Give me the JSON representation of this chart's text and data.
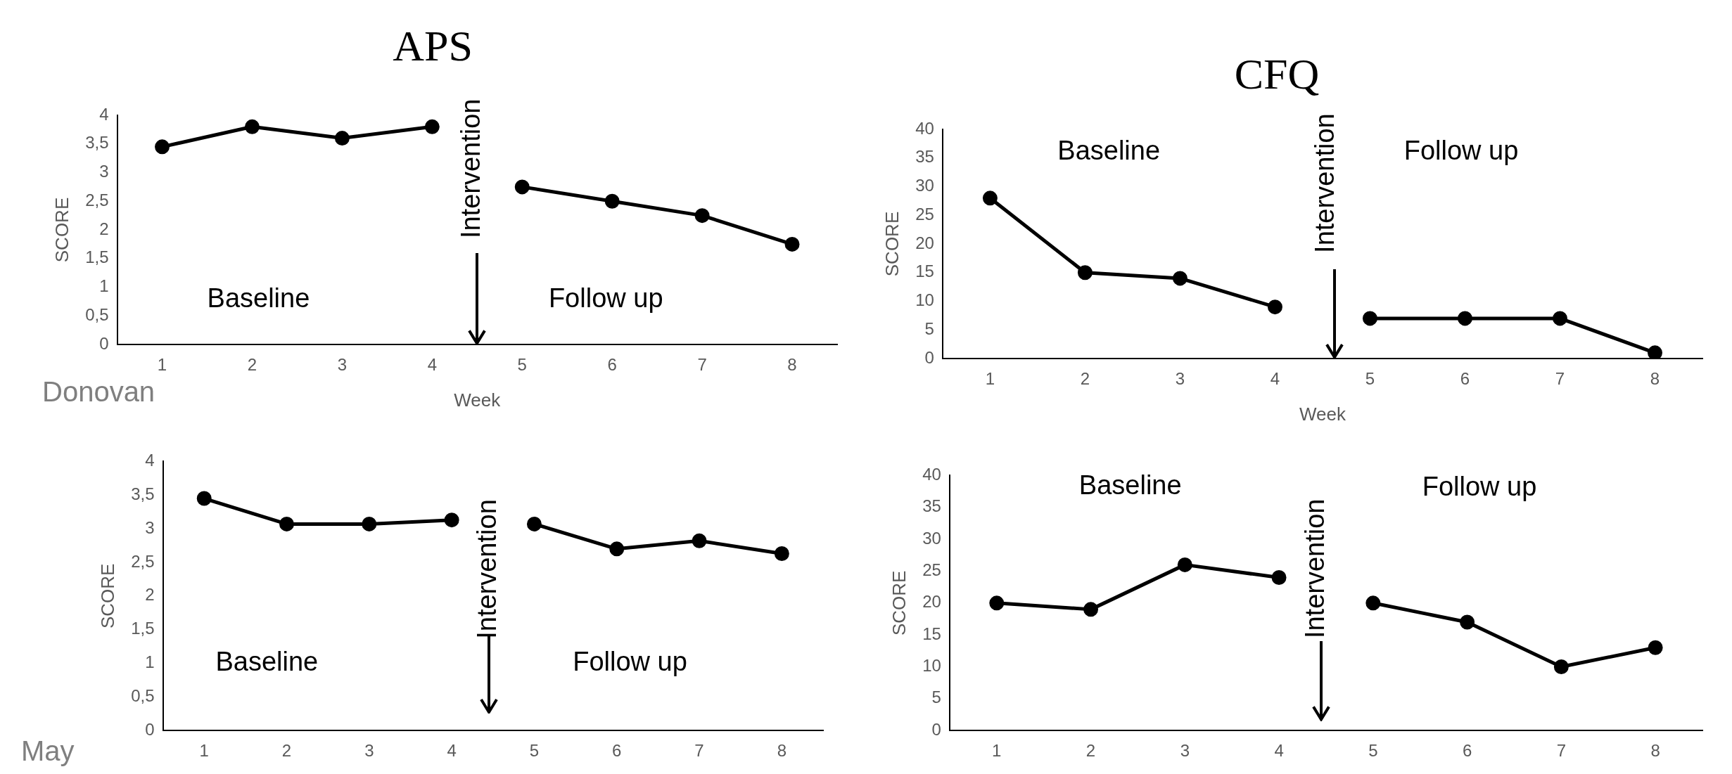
{
  "chart_data": [
    {
      "type": "line",
      "title": "APS",
      "xlabel": "Week",
      "ylabel": "SCORE",
      "categories": [
        "1",
        "2",
        "3",
        "4",
        "5",
        "6",
        "7",
        "8"
      ],
      "series": [
        {
          "color": "#000000",
          "values": [
            3.45,
            3.8,
            3.6,
            3.8,
            null,
            null,
            null,
            null
          ]
        },
        {
          "color": "#000000",
          "values": [
            null,
            null,
            null,
            null,
            2.75,
            2.5,
            2.25,
            1.75
          ]
        }
      ],
      "ylim": [
        0,
        4
      ],
      "yticks": [
        0,
        {
          "value": 0.5,
          "label": "0,5"
        },
        1,
        {
          "value": 1.5,
          "label": "1,5"
        },
        2,
        {
          "value": 2.5,
          "label": "2,5"
        },
        3,
        {
          "value": 3.5,
          "label": "3,5"
        },
        4
      ],
      "grid": false,
      "legend": false,
      "marker": "circle",
      "line_style": "solid",
      "annotations": [
        "Baseline",
        "Follow up",
        "Intervention",
        "Donovan"
      ]
    },
    {
      "type": "line",
      "title": "CFQ",
      "xlabel": "Week",
      "ylabel": "SCORE",
      "categories": [
        "1",
        "2",
        "3",
        "4",
        "5",
        "6",
        "7",
        "8"
      ],
      "series": [
        {
          "color": "#000000",
          "values": [
            28,
            15,
            14,
            9,
            null,
            null,
            null,
            null
          ]
        },
        {
          "color": "#000000",
          "values": [
            null,
            null,
            null,
            null,
            7,
            7,
            7,
            1
          ]
        }
      ],
      "ylim": [
        0,
        40
      ],
      "yticks": [
        0,
        5,
        10,
        15,
        20,
        25,
        30,
        35,
        40
      ],
      "grid": false,
      "legend": false,
      "marker": "circle",
      "line_style": "solid",
      "annotations": [
        "Baseline",
        "Follow up",
        "Intervention"
      ]
    },
    {
      "type": "line",
      "ylabel": "SCORE",
      "categories": [
        "1",
        "2",
        "3",
        "4",
        "5",
        "6",
        "7",
        "8"
      ],
      "series": [
        {
          "color": "#000000",
          "values": [
            3.45,
            3.07,
            3.07,
            3.13,
            null,
            null,
            null,
            null
          ]
        },
        {
          "color": "#000000",
          "values": [
            null,
            null,
            null,
            null,
            3.07,
            2.7,
            2.82,
            2.63
          ]
        }
      ],
      "ylim": [
        0,
        4
      ],
      "yticks": [
        0,
        {
          "value": 0.5,
          "label": "0,5"
        },
        1,
        {
          "value": 1.5,
          "label": "1,5"
        },
        2,
        {
          "value": 2.5,
          "label": "2,5"
        },
        3,
        {
          "value": 3.5,
          "label": "3,5"
        },
        4
      ],
      "grid": false,
      "legend": false,
      "marker": "circle",
      "line_style": "solid",
      "annotations": [
        "Baseline",
        "Follow up",
        "Intervention",
        "May"
      ]
    },
    {
      "type": "line",
      "ylabel": "SCORE",
      "categories": [
        "1",
        "2",
        "3",
        "4",
        "5",
        "6",
        "7",
        "8"
      ],
      "series": [
        {
          "color": "#000000",
          "values": [
            20,
            19,
            26,
            24,
            null,
            null,
            null,
            null
          ]
        },
        {
          "color": "#000000",
          "values": [
            null,
            null,
            null,
            null,
            20,
            17,
            10,
            13
          ]
        }
      ],
      "ylim": [
        0,
        40
      ],
      "yticks": [
        0,
        5,
        10,
        15,
        20,
        25,
        30,
        35,
        40
      ],
      "grid": false,
      "legend": false,
      "marker": "circle",
      "line_style": "solid",
      "annotations": [
        "Baseline",
        "Follow up",
        "Intervention"
      ]
    }
  ]
}
